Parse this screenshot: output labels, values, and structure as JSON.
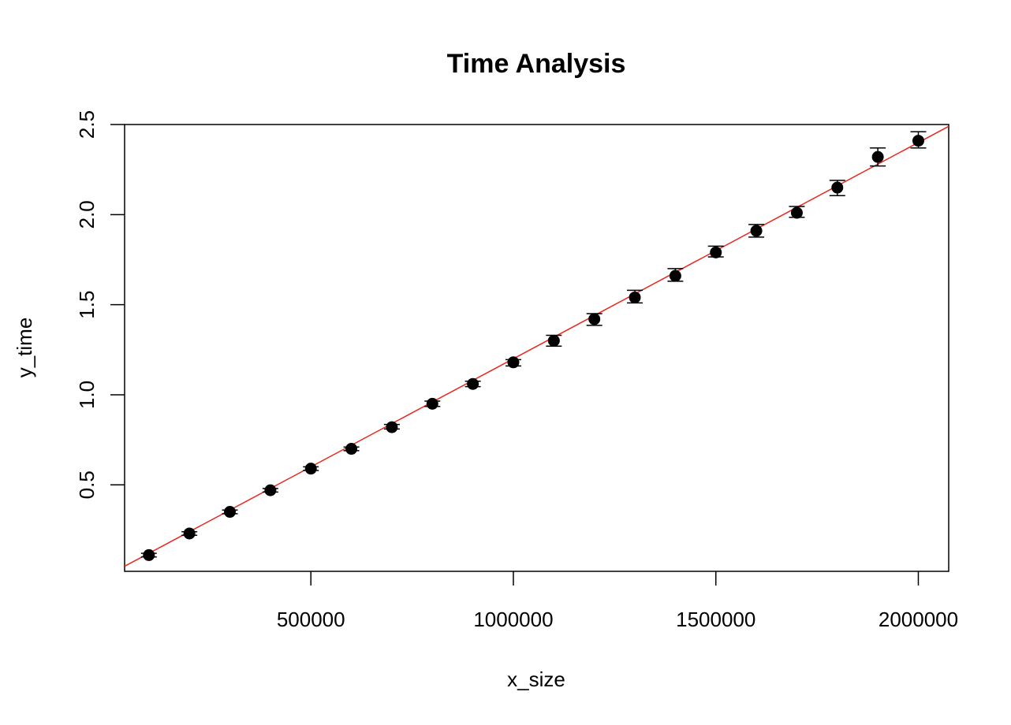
{
  "chart_data": {
    "type": "scatter",
    "title": "Time Analysis",
    "xlabel": "x_size",
    "ylabel": "y_time",
    "xlim": [
      40000,
      2075000
    ],
    "ylim": [
      0.02,
      2.5
    ],
    "x_ticks": [
      500000,
      1000000,
      1500000,
      2000000
    ],
    "x_tick_labels": [
      "500000",
      "1000000",
      "1500000",
      "2000000"
    ],
    "y_ticks": [
      0.5,
      1.0,
      1.5,
      2.0,
      2.5
    ],
    "y_tick_labels": [
      "0.5",
      "1.0",
      "1.5",
      "2.0",
      "2.5"
    ],
    "grid": false,
    "series": [
      {
        "x": [
          100000,
          200000,
          300000,
          400000,
          500000,
          600000,
          700000,
          800000,
          900000,
          1000000,
          1100000,
          1200000,
          1300000,
          1400000,
          1500000,
          1600000,
          1700000,
          1800000,
          1900000,
          2000000
        ],
        "y": [
          0.11,
          0.23,
          0.35,
          0.47,
          0.59,
          0.7,
          0.82,
          0.95,
          1.06,
          1.18,
          1.3,
          1.42,
          1.54,
          1.66,
          1.79,
          1.91,
          2.01,
          2.15,
          2.32,
          2.41
        ],
        "y_lower": [
          0.1,
          0.22,
          0.34,
          0.46,
          0.58,
          0.69,
          0.81,
          0.935,
          1.045,
          1.16,
          1.27,
          1.385,
          1.51,
          1.63,
          1.765,
          1.875,
          1.985,
          2.105,
          2.27,
          2.37
        ],
        "y_upper": [
          0.12,
          0.24,
          0.36,
          0.48,
          0.6,
          0.71,
          0.835,
          0.965,
          1.075,
          1.195,
          1.33,
          1.45,
          1.58,
          1.7,
          1.825,
          1.945,
          2.045,
          2.19,
          2.37,
          2.46
        ],
        "color": "#000000"
      }
    ],
    "fit_line": {
      "type": "linear",
      "slope": 1.2e-06,
      "intercept": 0.0,
      "color": "#E8281F"
    }
  }
}
